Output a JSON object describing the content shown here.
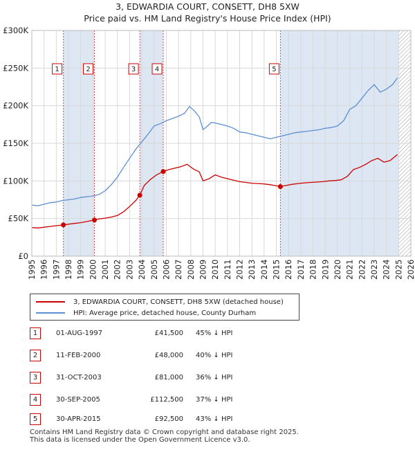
{
  "title_line1": "3, EDWARDIA COURT, CONSETT, DH8 5XW",
  "title_line2": "Price paid vs. HM Land Registry's House Price Index (HPI)",
  "colors": {
    "property": "#cc0000",
    "hpi": "#5b8fd1",
    "shade": "#dde6f3"
  },
  "legend": {
    "property": "3, EDWARDIA COURT, CONSETT, DH8 5XW (detached house)",
    "hpi": "HPI: Average price, detached house, County Durham"
  },
  "sales": [
    {
      "num": "1",
      "date": "01-AUG-1997",
      "price": "£41,500",
      "pct": "45% ↓ HPI"
    },
    {
      "num": "2",
      "date": "11-FEB-2000",
      "price": "£48,000",
      "pct": "40% ↓ HPI"
    },
    {
      "num": "3",
      "date": "31-OCT-2003",
      "price": "£81,000",
      "pct": "36% ↓ HPI"
    },
    {
      "num": "4",
      "date": "30-SEP-2005",
      "price": "£112,500",
      "pct": "37% ↓ HPI"
    },
    {
      "num": "5",
      "date": "30-APR-2015",
      "price": "£92,500",
      "pct": "43% ↓ HPI"
    }
  ],
  "footer_line1": "Contains HM Land Registry data © Crown copyright and database right 2025.",
  "footer_line2": "This data is licensed under the Open Government Licence v3.0.",
  "chart_data": {
    "type": "line",
    "title": "3, EDWARDIA COURT, CONSETT, DH8 5XW — Price paid vs. HM Land Registry's House Price Index (HPI)",
    "xlabel": "",
    "ylabel": "",
    "xlim": [
      1995,
      2026
    ],
    "ylim": [
      0,
      300000
    ],
    "x_ticks": [
      1995,
      1996,
      1997,
      1998,
      1999,
      2000,
      2001,
      2002,
      2003,
      2004,
      2005,
      2006,
      2007,
      2008,
      2009,
      2010,
      2011,
      2012,
      2013,
      2014,
      2015,
      2016,
      2017,
      2018,
      2019,
      2020,
      2021,
      2022,
      2023,
      2024,
      2025,
      2026
    ],
    "y_ticks": [
      {
        "value": 0,
        "label": "£0"
      },
      {
        "value": 50000,
        "label": "£50K"
      },
      {
        "value": 100000,
        "label": "£100K"
      },
      {
        "value": 150000,
        "label": "£150K"
      },
      {
        "value": 200000,
        "label": "£200K"
      },
      {
        "value": 250000,
        "label": "£250K"
      },
      {
        "value": 300000,
        "label": "£300K"
      }
    ],
    "grid": true,
    "future_hatch_from": 2025.0,
    "shaded_ranges": [
      [
        1997.58,
        2000.12
      ],
      [
        2003.83,
        2005.75
      ],
      [
        2015.33,
        2025.0
      ]
    ],
    "transactions": [
      {
        "label": "1",
        "x": 1997.58,
        "y": 41500
      },
      {
        "label": "2",
        "x": 2000.12,
        "y": 48000
      },
      {
        "label": "3",
        "x": 2003.83,
        "y": 81000
      },
      {
        "label": "4",
        "x": 2005.75,
        "y": 112500
      },
      {
        "label": "5",
        "x": 2015.33,
        "y": 92500
      }
    ],
    "series": [
      {
        "name": "HPI: Average price, detached house, County Durham",
        "color": "#5b8fd1",
        "x": [
          1995.0,
          1995.5,
          1996.0,
          1996.5,
          1997.0,
          1997.5,
          1998.0,
          1998.5,
          1999.0,
          1999.5,
          2000.0,
          2000.5,
          2001.0,
          2001.5,
          2002.0,
          2002.5,
          2003.0,
          2003.5,
          2004.0,
          2004.5,
          2005.0,
          2005.5,
          2006.0,
          2006.5,
          2007.0,
          2007.5,
          2007.9,
          2008.3,
          2008.7,
          2009.0,
          2009.3,
          2009.7,
          2010.0,
          2010.5,
          2011.0,
          2011.5,
          2012.0,
          2012.5,
          2013.0,
          2013.5,
          2014.0,
          2014.5,
          2015.0,
          2015.5,
          2016.0,
          2016.5,
          2017.0,
          2017.5,
          2018.0,
          2018.5,
          2019.0,
          2019.5,
          2020.0,
          2020.5,
          2021.0,
          2021.5,
          2022.0,
          2022.5,
          2023.0,
          2023.5,
          2024.0,
          2024.5,
          2024.9
        ],
        "values": [
          68000,
          67000,
          69000,
          71000,
          72000,
          74000,
          75000,
          76000,
          78000,
          79000,
          80000,
          82000,
          87000,
          95000,
          105000,
          118000,
          130000,
          142000,
          152000,
          162000,
          173000,
          176000,
          180000,
          183000,
          186000,
          190000,
          199000,
          193000,
          185000,
          168000,
          172000,
          178000,
          177000,
          175000,
          173000,
          170000,
          165000,
          164000,
          162000,
          160000,
          158000,
          156000,
          158000,
          160000,
          162000,
          164000,
          165000,
          166000,
          167000,
          168000,
          170000,
          171000,
          173000,
          180000,
          195000,
          200000,
          210000,
          220000,
          228000,
          218000,
          222000,
          228000,
          237000
        ]
      },
      {
        "name": "3, EDWARDIA COURT, CONSETT, DH8 5XW (detached house)",
        "color": "#cc0000",
        "x": [
          1995.0,
          1995.5,
          1996.0,
          1996.5,
          1997.0,
          1997.58,
          1998.0,
          1998.5,
          1999.0,
          1999.5,
          2000.12,
          2000.5,
          2001.0,
          2001.5,
          2002.0,
          2002.5,
          2003.0,
          2003.5,
          2003.83,
          2004.2,
          2004.7,
          2005.2,
          2005.75,
          2006.2,
          2006.7,
          2007.2,
          2007.7,
          2008.2,
          2008.7,
          2009.0,
          2009.5,
          2010.0,
          2010.5,
          2011.0,
          2011.5,
          2012.0,
          2012.5,
          2013.0,
          2013.5,
          2014.0,
          2014.5,
          2015.0,
          2015.33,
          2015.8,
          2016.3,
          2016.8,
          2017.3,
          2017.8,
          2018.3,
          2018.8,
          2019.3,
          2019.8,
          2020.3,
          2020.8,
          2021.3,
          2021.8,
          2022.3,
          2022.8,
          2023.3,
          2023.8,
          2024.3,
          2024.9
        ],
        "values": [
          38000,
          37500,
          38500,
          39500,
          40500,
          41500,
          42500,
          43500,
          44500,
          46000,
          48000,
          49500,
          50500,
          52000,
          54000,
          59000,
          66000,
          74000,
          81000,
          94000,
          102000,
          108000,
          112500,
          115000,
          117000,
          119000,
          122000,
          116000,
          112000,
          100000,
          103000,
          108000,
          105000,
          103000,
          101000,
          99000,
          98000,
          97000,
          96500,
          96000,
          95000,
          93500,
          92500,
          94000,
          95500,
          96500,
          97500,
          98000,
          98500,
          99000,
          100000,
          100500,
          101500,
          106000,
          115000,
          118000,
          122000,
          127000,
          130000,
          125000,
          127000,
          135000
        ]
      }
    ]
  }
}
